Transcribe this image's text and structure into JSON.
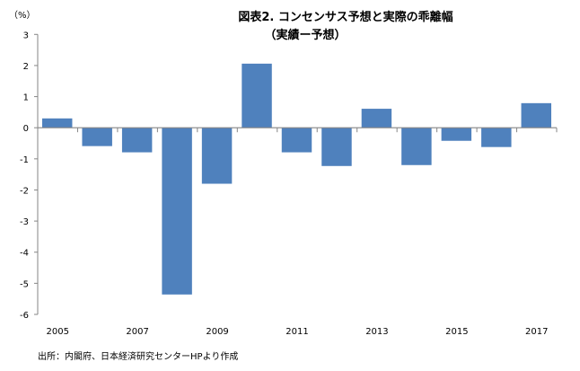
{
  "chart_data": {
    "type": "bar",
    "title": "図表2. コンセンサス予想と実際の乖離幅",
    "subtitle": "（実績ー予想）",
    "ylabel": "（%）",
    "xlabel": "",
    "ylim": [
      -6,
      3
    ],
    "yticks": [
      3,
      2,
      1,
      0,
      -1,
      -2,
      -3,
      -4,
      -5,
      -6
    ],
    "categories": [
      "2005",
      "2006",
      "2007",
      "2008",
      "2009",
      "2010",
      "2011",
      "2012",
      "2013",
      "2014",
      "2015",
      "2016",
      "2017"
    ],
    "xtick_labels": [
      "2005",
      "",
      "2007",
      "",
      "2009",
      "",
      "2011",
      "",
      "2013",
      "",
      "2015",
      "",
      "2017"
    ],
    "values": [
      0.3,
      -0.59,
      -0.79,
      -5.36,
      -1.8,
      2.06,
      -0.79,
      -1.23,
      0.61,
      -1.2,
      -0.42,
      -0.62,
      0.79
    ],
    "bar_color": "#4f81bd",
    "grid": false,
    "source": "出所：内閣府、日本経済研究センターHPより作成"
  }
}
